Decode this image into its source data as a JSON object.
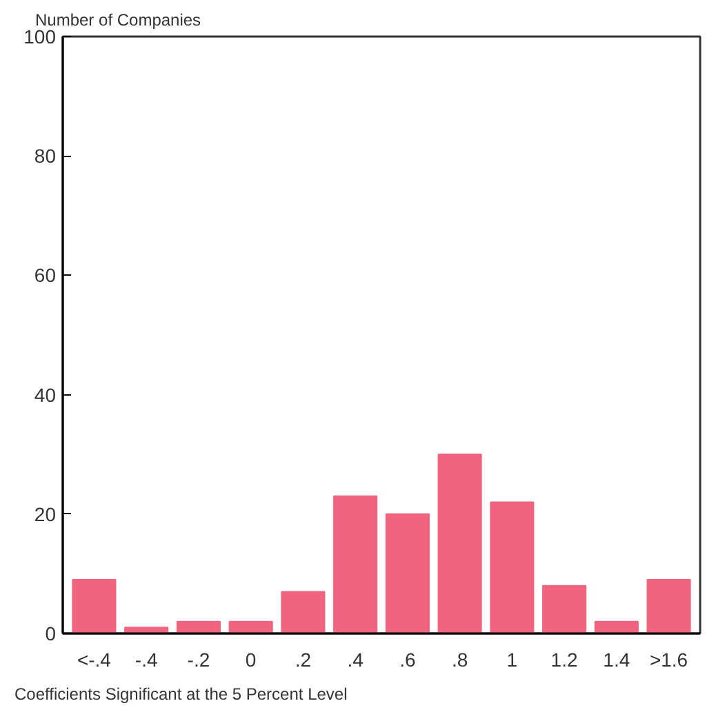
{
  "chart_data": {
    "type": "bar",
    "ylabel": "Number of Companies",
    "xlabel": "Coefficients Significant at the 5 Percent Level",
    "categories": [
      "<-.4",
      "-.4",
      "-.2",
      "0",
      ".2",
      ".4",
      ".6",
      ".8",
      "1",
      "1.2",
      "1.4",
      ">1.6"
    ],
    "values": [
      9,
      1,
      2,
      2,
      7,
      23,
      20,
      30,
      22,
      8,
      2,
      9
    ],
    "color": "#f0647f",
    "ylim": [
      0,
      100
    ],
    "yticks": [
      0,
      20,
      40,
      60,
      80,
      100
    ],
    "grid": false
  }
}
